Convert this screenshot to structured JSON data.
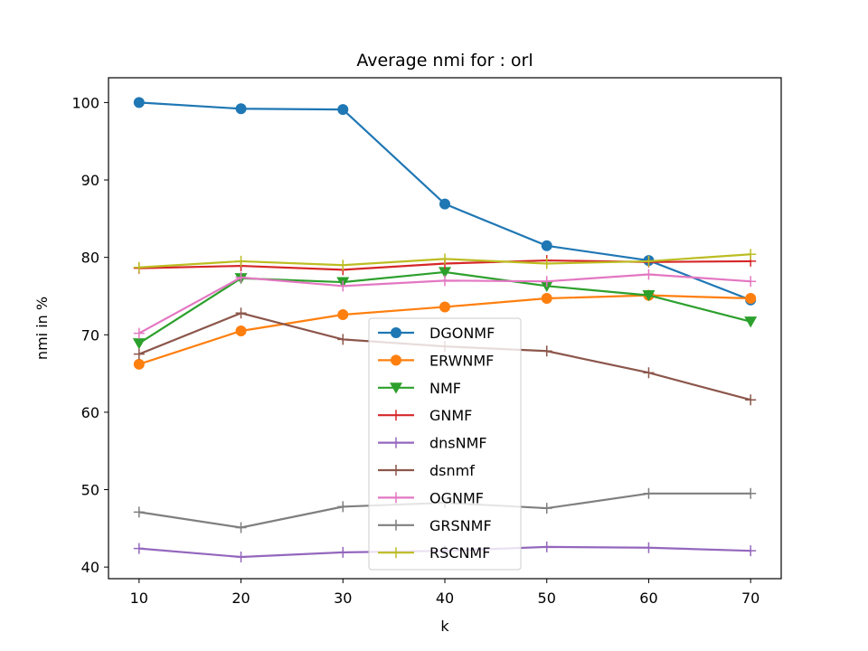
{
  "chart_data": {
    "type": "line",
    "title": "Average nmi for : orl",
    "xlabel": "k",
    "ylabel": "nmi in %",
    "x": [
      10,
      20,
      30,
      40,
      50,
      60,
      70
    ],
    "xlim": [
      7,
      73
    ],
    "ylim": [
      38.5,
      103.2
    ],
    "xticks": [
      10,
      20,
      30,
      40,
      50,
      60,
      70
    ],
    "yticks": [
      40,
      50,
      60,
      70,
      80,
      90,
      100
    ],
    "grid": false,
    "legend_position": "center",
    "series": [
      {
        "name": "DGONMF",
        "color": "#1f77b4",
        "marker": "circle",
        "values": [
          100.0,
          99.2,
          99.1,
          86.9,
          81.5,
          79.6,
          74.5
        ]
      },
      {
        "name": "ERWNMF",
        "color": "#ff7f0e",
        "marker": "circle",
        "values": [
          66.2,
          70.5,
          72.6,
          73.6,
          74.7,
          75.1,
          74.7
        ]
      },
      {
        "name": "NMF",
        "color": "#2ca02c",
        "marker": "triangle-down",
        "values": [
          68.9,
          77.3,
          76.8,
          78.1,
          76.3,
          75.1,
          71.7
        ]
      },
      {
        "name": "GNMF",
        "color": "#d62728",
        "marker": "plus",
        "values": [
          78.6,
          78.9,
          78.4,
          79.2,
          79.6,
          79.4,
          79.5
        ]
      },
      {
        "name": "dnsNMF",
        "color": "#9467bd",
        "marker": "plus",
        "values": [
          42.4,
          41.3,
          41.9,
          42.1,
          42.6,
          42.5,
          42.1
        ]
      },
      {
        "name": "dsnmf",
        "color": "#8c564b",
        "marker": "plus",
        "values": [
          67.5,
          72.8,
          69.4,
          68.5,
          67.9,
          65.1,
          61.6
        ]
      },
      {
        "name": "OGNMF",
        "color": "#e377c2",
        "marker": "plus",
        "values": [
          70.2,
          77.4,
          76.3,
          77.0,
          76.9,
          77.8,
          76.9
        ]
      },
      {
        "name": "GRSNMF",
        "color": "#7f7f7f",
        "marker": "plus",
        "values": [
          47.1,
          45.1,
          47.8,
          48.3,
          47.6,
          49.5,
          49.5
        ]
      },
      {
        "name": "RSCNMF",
        "color": "#bcbd22",
        "marker": "plus",
        "values": [
          78.7,
          79.5,
          79.0,
          79.8,
          79.2,
          79.5,
          80.4
        ]
      }
    ]
  }
}
